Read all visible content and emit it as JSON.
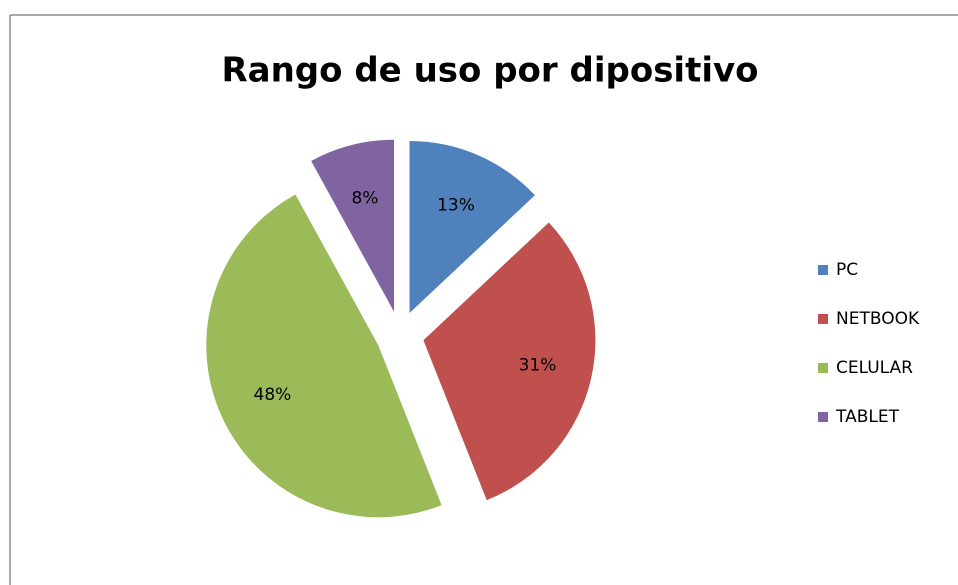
{
  "chart_data": {
    "type": "pie",
    "title": "Rango de uso por dipositivo",
    "categories": [
      "PC",
      "NETBOOK",
      "CELULAR",
      "TABLET"
    ],
    "values": [
      13,
      31,
      48,
      8
    ],
    "value_labels": [
      "13%",
      "31%",
      "48%",
      "8%"
    ],
    "colors": [
      "#4f81bd",
      "#c0504d",
      "#9bbb59",
      "#8064a2"
    ],
    "legend": "right"
  }
}
